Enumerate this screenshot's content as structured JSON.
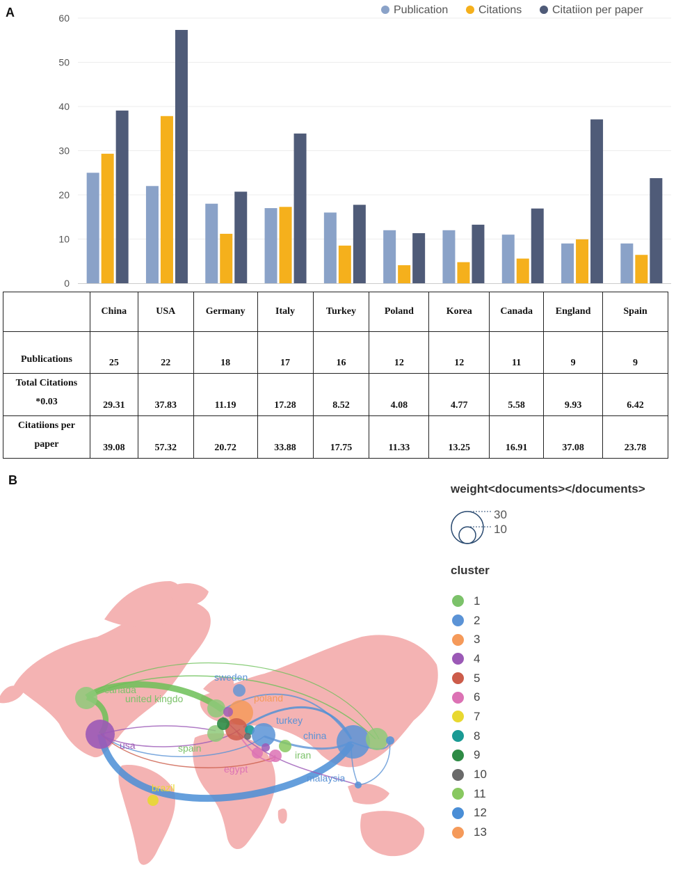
{
  "panels": {
    "a": "A",
    "b": "B"
  },
  "chart_data": {
    "type": "bar",
    "categories": [
      "China",
      "USA",
      "Germany",
      "Italy",
      "Turkey",
      "Poland",
      "Korea",
      "Canada",
      "England",
      "Spain"
    ],
    "series": [
      {
        "name": "Publication",
        "color": "#8aa2c8",
        "values": [
          25,
          22,
          18,
          17,
          16,
          12,
          12,
          11,
          9,
          9
        ]
      },
      {
        "name": "Citations",
        "color": "#f5b01c",
        "values": [
          29.31,
          37.83,
          11.19,
          17.28,
          8.52,
          4.08,
          4.77,
          5.58,
          9.93,
          6.42
        ]
      },
      {
        "name": "Citatiion per paper",
        "color": "#4f5b78",
        "values": [
          39.08,
          57.32,
          20.72,
          33.88,
          17.75,
          11.33,
          13.25,
          16.91,
          37.08,
          23.78
        ]
      }
    ],
    "ylim": [
      0,
      60
    ],
    "yticks": [
      "0",
      "10",
      "20",
      "30",
      "40",
      "50",
      "60"
    ],
    "legend": "top-right"
  },
  "table": {
    "columns": [
      "China",
      "USA",
      "Germany",
      "Italy",
      "Turkey",
      "Poland",
      "Korea",
      "Canada",
      "England",
      "Spain"
    ],
    "rows": [
      {
        "label1": "Publications",
        "label2": "",
        "values": [
          "25",
          "22",
          "18",
          "17",
          "16",
          "12",
          "12",
          "11",
          "9",
          "9"
        ]
      },
      {
        "label1": "Total Citations",
        "label2": "*0.03",
        "values": [
          "29.31",
          "37.83",
          "11.19",
          "17.28",
          "8.52",
          "4.08",
          "4.77",
          "5.58",
          "9.93",
          "6.42"
        ]
      },
      {
        "label1": "Citatiions per",
        "label2": "paper",
        "values": [
          "39.08",
          "57.32",
          "20.72",
          "33.88",
          "17.75",
          "11.33",
          "13.25",
          "16.91",
          "37.08",
          "23.78"
        ]
      }
    ]
  },
  "map": {
    "weight_title": "weight<documents></documents>",
    "weight_values": [
      "30",
      "10"
    ],
    "cluster_title": "cluster",
    "clusters": [
      {
        "num": "1",
        "color": "#7cc26a"
      },
      {
        "num": "2",
        "color": "#5b93d6"
      },
      {
        "num": "3",
        "color": "#f59a5a"
      },
      {
        "num": "4",
        "color": "#9b59b6"
      },
      {
        "num": "5",
        "color": "#cc5c4a"
      },
      {
        "num": "6",
        "color": "#dc72b4"
      },
      {
        "num": "7",
        "color": "#e8d830"
      },
      {
        "num": "8",
        "color": "#1a9a94"
      },
      {
        "num": "9",
        "color": "#2e8b45"
      },
      {
        "num": "10",
        "color": "#6a6a6a"
      },
      {
        "num": "11",
        "color": "#88c860"
      },
      {
        "num": "12",
        "color": "#4a8ed6"
      },
      {
        "num": "13",
        "color": "#f59a5a"
      }
    ],
    "labels": {
      "canada": "canada",
      "united_kingdom": "united kingdo",
      "sweden": "sweden",
      "poland": "poland",
      "turkey": "turkey",
      "china": "china",
      "usa": "usa",
      "spain": "spain",
      "iran": "iran",
      "egypt": "egypt",
      "malaysia": "malaysia",
      "brazil": "brazil"
    }
  }
}
